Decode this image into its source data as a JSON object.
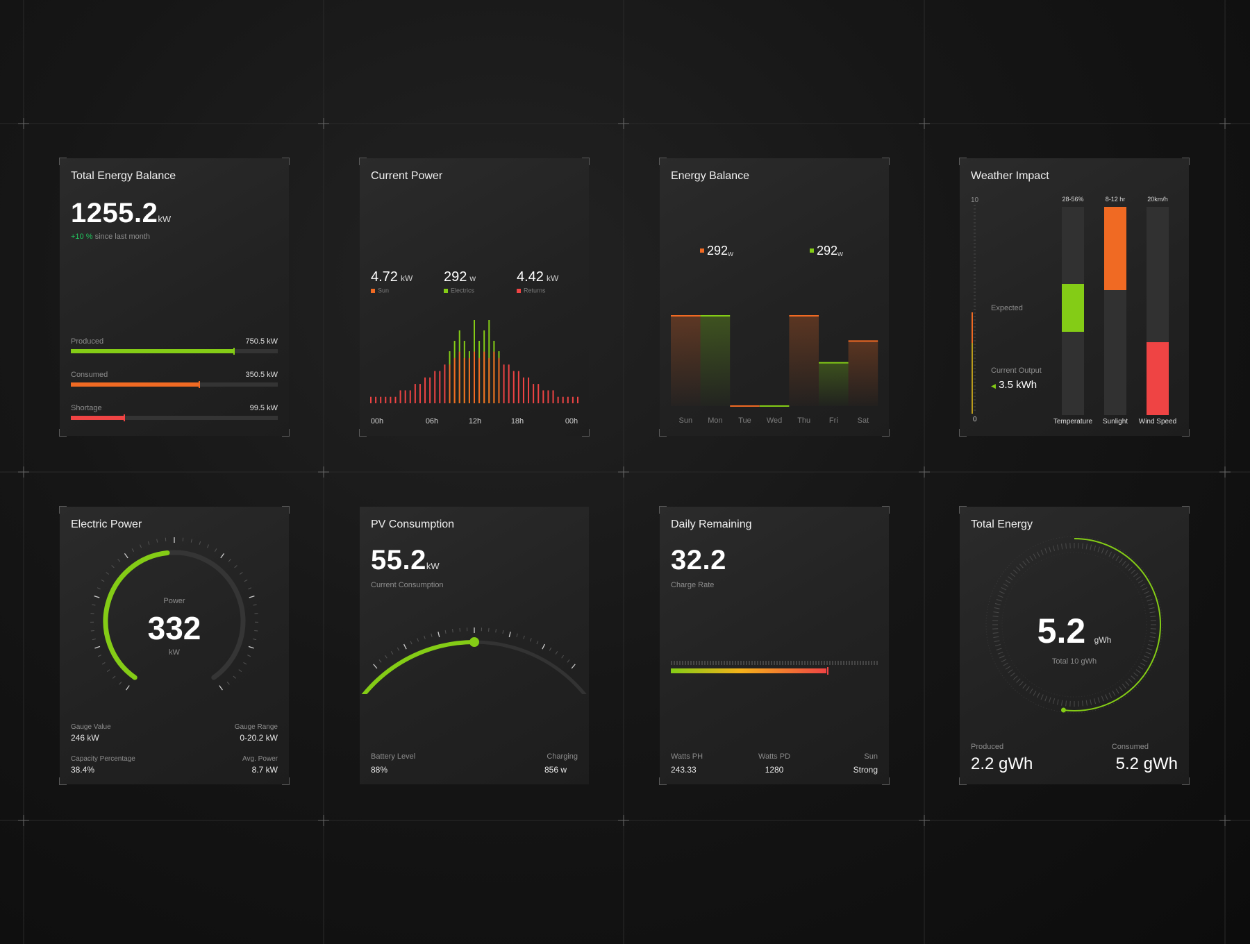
{
  "colors": {
    "green": "#84cc16",
    "orange": "#f06a23",
    "red": "#ef4444",
    "bg": "#141414",
    "card": "#252525"
  },
  "cards": {
    "total_energy_balance": {
      "title": "Total Energy Balance",
      "value": "1255.2",
      "unit": "kW",
      "change": "+10 %",
      "change_suffix": "since last month",
      "bars": [
        {
          "label": "Produced",
          "value": "750.5 kW",
          "fraction": 0.79,
          "color": "green"
        },
        {
          "label": "Consumed",
          "value": "350.5 kW",
          "fraction": 0.62,
          "color": "orange"
        },
        {
          "label": "Shortage",
          "value": "99.5 kW",
          "fraction": 0.26,
          "color": "red"
        }
      ]
    },
    "current_power": {
      "title": "Current Power",
      "stats": [
        {
          "value": "4.72",
          "unit": "kW",
          "label": "Sun",
          "color": "orange"
        },
        {
          "value": "292",
          "unit": "w",
          "label": "Electrics",
          "color": "green"
        },
        {
          "value": "4.42",
          "unit": "kW",
          "label": "Returns",
          "color": "red"
        }
      ],
      "x_ticks": [
        "00h",
        "06h",
        "12h",
        "18h",
        "00h"
      ]
    },
    "energy_balance": {
      "title": "Energy Balance",
      "legend": [
        {
          "value": "292",
          "unit": "w",
          "color": "orange"
        },
        {
          "value": "292",
          "unit": "w",
          "color": "green"
        }
      ],
      "days": [
        "Sun",
        "Mon",
        "Tue",
        "Wed",
        "Thu",
        "Fri",
        "Sat"
      ]
    },
    "weather_impact": {
      "title": "Weather Impact",
      "axis_top": "10",
      "axis_bottom": "0",
      "expected_label": "Expected",
      "output_label": "Current Output",
      "output_value": "3.5 kWh",
      "columns": [
        {
          "top": "28-56%",
          "label": "Temperature",
          "color": "green",
          "from": 0.4,
          "to": 0.63
        },
        {
          "top": "8-12 hr",
          "label": "Sunlight",
          "color": "orange",
          "from": 0.6,
          "to": 1.0
        },
        {
          "top": "20km/h",
          "label": "Wind Speed",
          "color": "red",
          "from": 0.0,
          "to": 0.35
        }
      ]
    },
    "electric_power": {
      "title": "Electric Power",
      "center_label": "Power",
      "value": "332",
      "unit": "kW",
      "fraction": 0.48,
      "stats": [
        {
          "label": "Gauge Value",
          "value": "246 kW"
        },
        {
          "label": "Gauge Range",
          "value": "0-20.2 kW"
        },
        {
          "label": "Capacity Percentage",
          "value": "38.4%"
        },
        {
          "label": "Avg. Power",
          "value": "8.7 kW"
        }
      ]
    },
    "pv_consumption": {
      "title": "PV Consumption",
      "value": "55.2",
      "unit": "kW",
      "sub": "Current Consumption",
      "fraction": 0.5,
      "battery_label": "Battery Level",
      "battery_value": "88%",
      "charging_label": "Charging",
      "charging_value": "856 w"
    },
    "daily_remaining": {
      "title": "Daily Remaining",
      "value": "32.2",
      "sub": "Charge Rate",
      "fraction": 0.75,
      "stats": [
        {
          "label": "Watts PH",
          "value": "243.33"
        },
        {
          "label": "Watts PD",
          "value": "1280"
        },
        {
          "label": "Sun",
          "value": "Strong"
        }
      ]
    },
    "total_energy": {
      "title": "Total Energy",
      "value": "5.2",
      "unit": "gWh",
      "sub": "Total 10 gWh",
      "fraction": 0.52,
      "produced_label": "Produced",
      "produced_value": "2.2 gWh",
      "consumed_label": "Consumed",
      "consumed_value": "5.2 gWh"
    }
  },
  "chart_data": [
    {
      "type": "bar",
      "title": "Current Power",
      "x_ticks": [
        "00h",
        "06h",
        "12h",
        "18h",
        "00h"
      ],
      "series": [
        {
          "name": "Electrics",
          "values": [
            0,
            0,
            0,
            0,
            0,
            0,
            0,
            0,
            0,
            0,
            0,
            0,
            0,
            0,
            0,
            0,
            5,
            6,
            7,
            6,
            5,
            8,
            6,
            7,
            8,
            6,
            5,
            0,
            0,
            0,
            0,
            0,
            0,
            0,
            0,
            0,
            0,
            0,
            0,
            0,
            0,
            0,
            0
          ]
        },
        {
          "name": "Returns",
          "values": [
            1,
            1,
            1,
            1,
            1,
            1,
            2,
            2,
            2,
            3,
            3,
            4,
            4,
            5,
            5,
            6,
            6,
            7,
            8,
            7,
            7,
            8,
            7,
            8,
            7,
            8,
            7,
            6,
            6,
            5,
            5,
            4,
            4,
            3,
            3,
            2,
            2,
            2,
            1,
            1,
            1,
            1,
            1
          ]
        }
      ]
    },
    {
      "type": "bar",
      "title": "Energy Balance",
      "categories": [
        "Sun",
        "Mon",
        "Tue",
        "Wed",
        "Thu",
        "Fri",
        "Sat"
      ],
      "values": [
        100,
        100,
        0,
        0,
        100,
        48,
        72
      ]
    }
  ]
}
